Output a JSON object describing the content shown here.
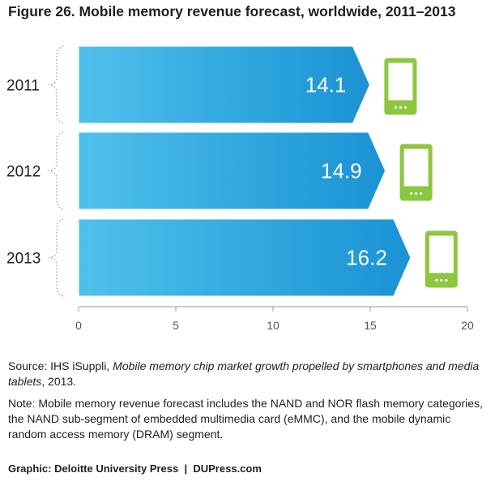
{
  "header": {
    "title": "Figure 26. Mobile memory revenue forecast, worldwide, 2011–2013"
  },
  "chart_data": {
    "type": "bar",
    "orientation": "horizontal",
    "categories": [
      "2011",
      "2012",
      "2013"
    ],
    "values": [
      14.1,
      14.9,
      16.2
    ],
    "data_labels": [
      "14.1",
      "14.9",
      "16.2"
    ],
    "xlim": [
      0,
      20
    ],
    "x_ticks": [
      "0",
      "5",
      "10",
      "15",
      "20"
    ],
    "bar_color": "#29a3df",
    "icon_color": "#8dc63f",
    "icon": "smartphone-icon",
    "grid": false,
    "legend": "none"
  },
  "footer": {
    "source_prefix": "Source: IHS iSuppli, ",
    "source_title": "Mobile memory chip market growth propelled by smartphones and media tablets",
    "source_suffix": ", 2013.",
    "note": "Note: Mobile memory revenue forecast includes the NAND and NOR flash memory categories, the NAND sub-segment of embedded multimedia card (eMMC), and the mobile dynamic random access memory (DRAM) segment.",
    "credit_left": "Graphic: Deloitte University Press",
    "credit_sep": "|",
    "credit_right": "DUPress.com"
  }
}
